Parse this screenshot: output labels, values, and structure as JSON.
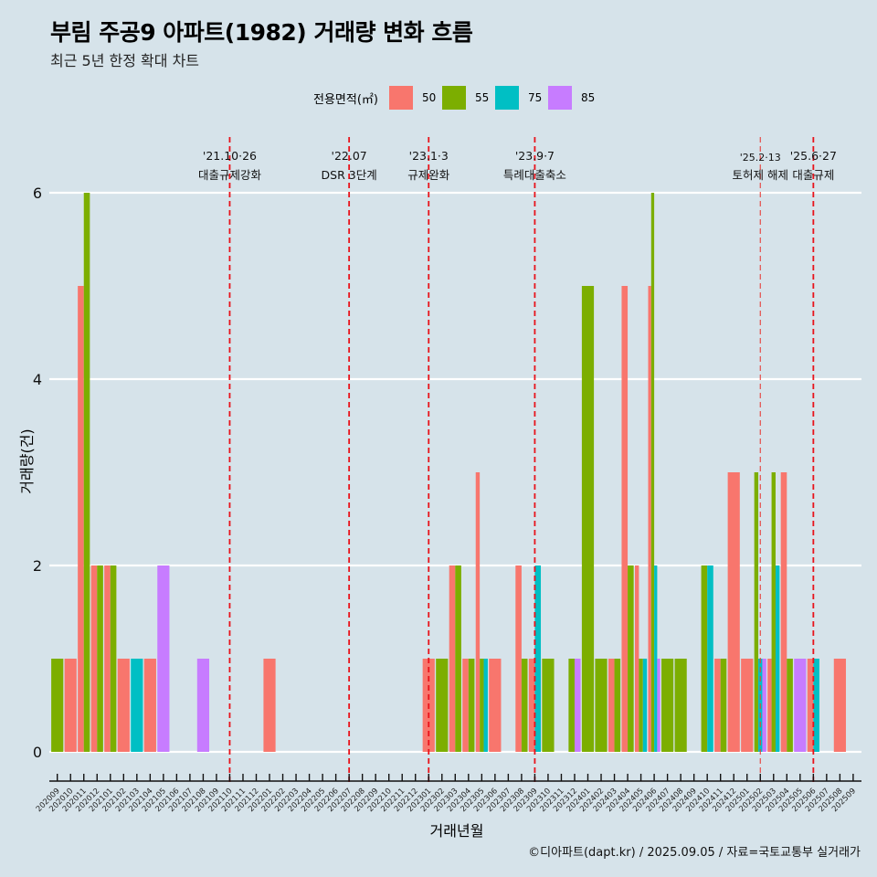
{
  "header": {
    "title": "부림 주공9 아파트(1982) 거래량 변화 흐름",
    "subtitle": "최근 5년 한정 확대 차트"
  },
  "legend": {
    "title": "전용면적(㎡)",
    "items": [
      {
        "label": "50",
        "color": "#F8766D"
      },
      {
        "label": "55",
        "color": "#7CAE00"
      },
      {
        "label": "75",
        "color": "#00BFC4"
      },
      {
        "label": "85",
        "color": "#C77CFF"
      }
    ]
  },
  "caption": "©디아파트(dapt.kr) / 2025.09.05 / 자료=국토교통부 실거래가",
  "chart_data": {
    "type": "bar",
    "title": "부림 주공9 아파트(1982) 거래량 변화 흐름",
    "subtitle": "최근 5년 한정 확대 차트",
    "xlabel": "거래년월",
    "ylabel": "거래량(건)",
    "ylim": [
      0,
      6
    ],
    "yticks": [
      0,
      2,
      4,
      6
    ],
    "grid": "horizontal-major",
    "legend_position": "top",
    "categories": [
      "202009",
      "202010",
      "202011",
      "202012",
      "202101",
      "202102",
      "202103",
      "202104",
      "202105",
      "202106",
      "202107",
      "202108",
      "202109",
      "202110",
      "202111",
      "202112",
      "202201",
      "202202",
      "202203",
      "202204",
      "202205",
      "202206",
      "202207",
      "202208",
      "202209",
      "202210",
      "202211",
      "202212",
      "202301",
      "202302",
      "202303",
      "202304",
      "202305",
      "202306",
      "202307",
      "202308",
      "202309",
      "202310",
      "202311",
      "202312",
      "202401",
      "202402",
      "202403",
      "202404",
      "202405",
      "202406",
      "202407",
      "202408",
      "202409",
      "202410",
      "202411",
      "202412",
      "202501",
      "202502",
      "202503",
      "202504",
      "202505",
      "202506",
      "202507",
      "202508",
      "202509"
    ],
    "series": [
      {
        "name": "50",
        "color": "#F8766D",
        "values": [
          0,
          1,
          5,
          2,
          2,
          1,
          0,
          1,
          0,
          0,
          0,
          0,
          0,
          0,
          0,
          0,
          1,
          0,
          0,
          0,
          0,
          0,
          0,
          0,
          0,
          0,
          0,
          0,
          1,
          0,
          2,
          1,
          3,
          1,
          0,
          2,
          1,
          0,
          0,
          0,
          0,
          0,
          1,
          5,
          2,
          5,
          0,
          0,
          0,
          0,
          1,
          3,
          1,
          0,
          1,
          3,
          0,
          1,
          0,
          1,
          0
        ]
      },
      {
        "name": "55",
        "color": "#7CAE00",
        "values": [
          1,
          0,
          6,
          2,
          2,
          0,
          0,
          0,
          0,
          0,
          0,
          0,
          0,
          0,
          0,
          0,
          0,
          0,
          0,
          0,
          0,
          0,
          0,
          0,
          0,
          0,
          0,
          0,
          0,
          1,
          2,
          1,
          1,
          0,
          0,
          1,
          0,
          1,
          0,
          1,
          5,
          1,
          1,
          2,
          1,
          6,
          1,
          1,
          0,
          2,
          1,
          0,
          0,
          3,
          3,
          1,
          0,
          0,
          0,
          0,
          0
        ]
      },
      {
        "name": "75",
        "color": "#00BFC4",
        "values": [
          0,
          0,
          0,
          0,
          0,
          0,
          1,
          0,
          0,
          0,
          0,
          0,
          0,
          0,
          0,
          0,
          0,
          0,
          0,
          0,
          0,
          0,
          0,
          0,
          0,
          0,
          0,
          0,
          0,
          0,
          0,
          0,
          1,
          0,
          0,
          0,
          2,
          0,
          0,
          0,
          0,
          0,
          0,
          0,
          1,
          2,
          0,
          0,
          0,
          2,
          0,
          0,
          0,
          1,
          2,
          0,
          0,
          1,
          0,
          0,
          0
        ]
      },
      {
        "name": "85",
        "color": "#C77CFF",
        "values": [
          0,
          0,
          0,
          0,
          0,
          0,
          0,
          0,
          2,
          0,
          0,
          1,
          0,
          0,
          0,
          0,
          0,
          0,
          0,
          0,
          0,
          0,
          0,
          0,
          0,
          0,
          0,
          0,
          0,
          0,
          0,
          0,
          0,
          0,
          0,
          0,
          0,
          0,
          0,
          1,
          0,
          0,
          0,
          0,
          0,
          1,
          0,
          0,
          0,
          0,
          0,
          0,
          0,
          1,
          0,
          0,
          1,
          0,
          0,
          0,
          0
        ]
      }
    ],
    "annotations": [
      {
        "month": "202110",
        "date": "'21.10·26",
        "label": "대출규제강화",
        "style": "bold"
      },
      {
        "month": "202207",
        "date": "'22.07",
        "label": "DSR 3단계",
        "style": "bold"
      },
      {
        "month": "202301",
        "date": "'23.1·3",
        "label": "규제완화",
        "style": "bold"
      },
      {
        "month": "202309",
        "date": "'23.9·7",
        "label": "특례대출축소",
        "style": "bold"
      },
      {
        "month": "202502",
        "date": "'25.2·13",
        "label": "토허제 해제",
        "style": "light"
      },
      {
        "month": "202506",
        "date": "'25.6·27",
        "label": "대출규제",
        "style": "bold"
      }
    ]
  }
}
